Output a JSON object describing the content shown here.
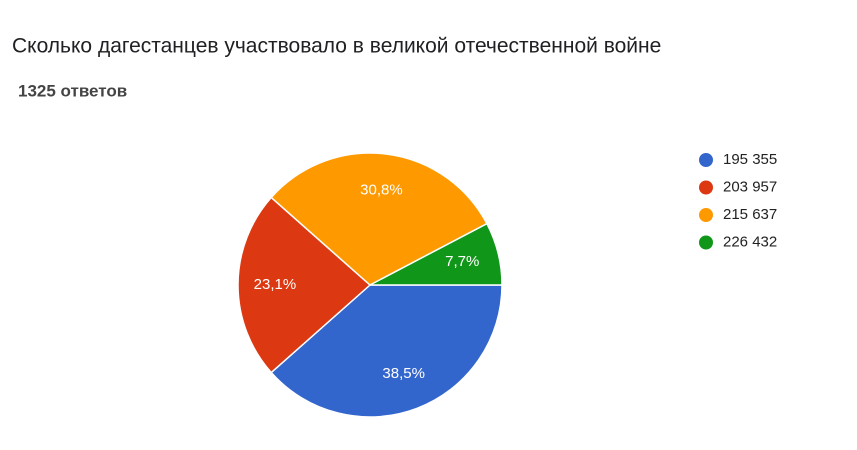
{
  "chart_data": {
    "type": "pie",
    "title": "Сколько дагестанцев участвовало в великой отечественной войне",
    "subtitle": "1325 ответов",
    "categories": [
      "195 355",
      "203 957",
      "215 637",
      "226 432"
    ],
    "values": [
      38.5,
      23.1,
      30.8,
      7.7
    ],
    "value_labels": [
      "38,5%",
      "23,1%",
      "30,8%",
      "7,7%"
    ],
    "colors": [
      "#3366cc",
      "#dc3912",
      "#ff9900",
      "#109618"
    ],
    "legend": "right"
  }
}
